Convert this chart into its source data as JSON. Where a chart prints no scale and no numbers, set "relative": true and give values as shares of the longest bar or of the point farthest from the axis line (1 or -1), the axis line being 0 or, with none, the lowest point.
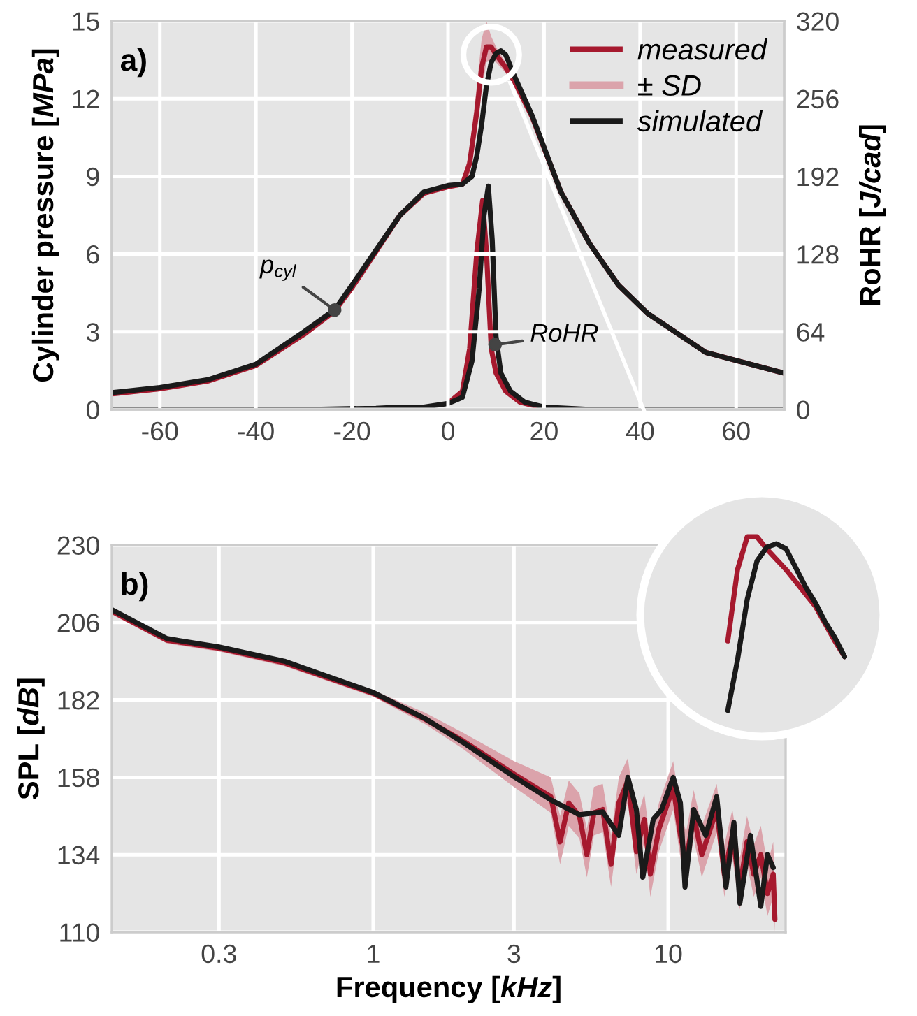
{
  "chart_data": [
    {
      "type": "line",
      "ylabel": "Cylinder pressure [MPa]",
      "y2label": "RoHR [J/cad]",
      "xlim": [
        -70,
        70
      ],
      "xticks": [
        -60,
        -40,
        -20,
        0,
        20,
        40,
        60
      ],
      "ylim": [
        0,
        15
      ],
      "yticks": [
        0,
        3,
        6,
        9,
        12,
        15
      ],
      "y2lim": [
        0,
        320
      ],
      "y2ticks": [
        0,
        64,
        128,
        192,
        256,
        320
      ],
      "grid": true,
      "legend": "top right",
      "annotations": [
        "a)",
        "± SD",
        {
          "text": "p$_{cyl}$",
          "x": -23.6,
          "y": 3.84
        },
        {
          "text": "RoHR",
          "x": 9.8,
          "y": 2.5
        }
      ],
      "series": [
        {
          "name": "measured",
          "color": "#a6192e",
          "x": [
            -70,
            -60,
            -50,
            -40,
            -30,
            -23.6,
            -20,
            -15,
            -10,
            -5,
            0,
            3,
            4.5,
            6,
            7,
            8,
            9,
            10,
            12,
            14,
            17.5,
            23.5,
            29.5,
            35.5,
            41.6,
            53.7,
            70
          ],
          "values": [
            0.6,
            0.8,
            1.1,
            1.7,
            2.9,
            3.8,
            4.7,
            6.1,
            7.5,
            8.35,
            8.6,
            8.7,
            9.5,
            11.5,
            13.2,
            14.0,
            14.0,
            13.7,
            13.2,
            12.6,
            11.3,
            8.4,
            6.4,
            4.8,
            3.7,
            2.2,
            1.4
          ],
          "lower": [
            0.5,
            0.7,
            1.0,
            1.6,
            2.8,
            3.7,
            4.6,
            6.0,
            7.4,
            8.25,
            8.5,
            8.6,
            9.1,
            10.8,
            12.3,
            13.4,
            13.5,
            13.4,
            13.0,
            12.4,
            11.2,
            8.3,
            6.3,
            4.7,
            3.6,
            2.1,
            1.3
          ],
          "upper": [
            0.7,
            0.9,
            1.2,
            1.8,
            3.0,
            3.9,
            4.8,
            6.2,
            7.6,
            8.45,
            8.7,
            8.8,
            10.0,
            12.5,
            14.3,
            15.0,
            14.4,
            14.0,
            13.4,
            12.8,
            11.4,
            8.5,
            6.5,
            4.9,
            3.8,
            2.3,
            1.5
          ]
        },
        {
          "name": "simulated",
          "color": "#1a1a1a",
          "x": [
            -70,
            -60,
            -50,
            -40,
            -30,
            -23.6,
            -20,
            -15,
            -10,
            -5,
            0,
            3,
            5,
            6,
            7,
            8,
            9,
            10,
            11,
            12,
            14,
            17.5,
            23.5,
            29.5,
            35.5,
            41.6,
            53.7,
            70
          ],
          "values": [
            0.65,
            0.85,
            1.15,
            1.75,
            3.0,
            3.85,
            4.8,
            6.15,
            7.5,
            8.4,
            8.65,
            8.7,
            9.0,
            9.8,
            11.0,
            12.5,
            13.4,
            13.75,
            13.85,
            13.7,
            12.8,
            11.35,
            8.4,
            6.4,
            4.8,
            3.7,
            2.2,
            1.4
          ]
        },
        {
          "axis": "y2",
          "color": "#a6192e",
          "x": [
            0,
            3,
            4.5,
            6,
            7.2,
            8,
            9,
            10,
            12,
            15,
            20,
            30
          ],
          "values": [
            5,
            15,
            50,
            130,
            172,
            130,
            50,
            30,
            15,
            6,
            1,
            0
          ]
        },
        {
          "axis": "y2",
          "color": "#1a1a1a",
          "x": [
            -70,
            -30,
            -15,
            -10,
            -5,
            0,
            3,
            5,
            6.5,
            7.5,
            8.4,
            9.2,
            10,
            11,
            13,
            16,
            20,
            30,
            70
          ],
          "values": [
            0,
            0,
            1,
            2,
            2,
            5,
            10,
            40,
            100,
            160,
            184,
            140,
            60,
            30,
            15,
            6,
            2,
            0,
            0
          ]
        }
      ]
    },
    {
      "type": "line",
      "xlabel": "Frequency [kHz]",
      "ylabel": "SPL [dB]",
      "log": "x",
      "xlim": [
        0.13,
        25
      ],
      "xticks": [
        0.3,
        1,
        3,
        10
      ],
      "ylim": [
        110,
        230
      ],
      "yticks": [
        110,
        134,
        158,
        182,
        206,
        230
      ],
      "grid": true,
      "annotations": [
        "b)"
      ],
      "series": [
        {
          "color": "#a6192e",
          "x": [
            0.13,
            0.2,
            0.3,
            0.5,
            1,
            1.5,
            2,
            3,
            4,
            4.3,
            4.6,
            5,
            5.3,
            5.6,
            6,
            6.4,
            6.8,
            7.3,
            7.8,
            8.3,
            8.7,
            9.3,
            10.4,
            11,
            11.5,
            12.2,
            13,
            14.6,
            15.5,
            16.5,
            17.5,
            18.5,
            19.5,
            20.6,
            21.7,
            22.7,
            23
          ],
          "values": [
            209.5,
            200.5,
            198,
            193.5,
            184,
            176,
            169.5,
            159,
            152,
            138,
            150,
            146,
            134,
            147,
            148,
            131,
            150,
            157,
            135,
            145,
            128,
            142,
            155,
            140,
            132,
            146,
            134,
            148,
            128,
            140,
            124,
            138,
            128,
            134,
            122,
            128,
            114
          ],
          "lower": [
            208.5,
            199.5,
            197,
            192.5,
            183,
            174.5,
            167,
            155,
            147,
            131,
            143,
            139,
            127,
            140,
            141,
            124,
            143,
            150,
            128,
            138,
            121,
            135,
            148,
            133,
            125,
            139,
            127,
            141,
            121,
            133,
            117,
            131,
            121,
            127,
            115,
            121,
            110
          ],
          "upper": [
            210.5,
            201.5,
            199,
            194.5,
            185,
            178,
            172,
            163,
            158,
            146,
            157,
            153,
            142,
            155,
            156,
            140,
            158,
            164,
            144,
            153,
            137,
            150,
            163,
            148,
            141,
            154,
            143,
            156,
            137,
            148,
            133,
            146,
            137,
            143,
            131,
            138,
            125
          ]
        },
        {
          "color": "#1a1a1a",
          "x": [
            0.13,
            0.2,
            0.3,
            0.5,
            1,
            1.5,
            2,
            3,
            4,
            5,
            6,
            6.8,
            7.3,
            7.8,
            8.2,
            8.9,
            9.5,
            10.4,
            11,
            11.4,
            12.2,
            13.4,
            14.6,
            15.7,
            16.7,
            17.5,
            19,
            20.6,
            21.7,
            22.7
          ],
          "values": [
            210,
            201,
            198.4,
            194,
            184.3,
            176.2,
            169,
            158.2,
            151,
            146.4,
            147.3,
            140,
            158,
            148,
            127,
            145,
            148,
            158,
            150,
            124,
            148,
            140,
            152,
            124,
            144,
            119,
            140,
            118,
            134,
            130
          ]
        }
      ]
    },
    {
      "type": "line",
      "relative": true,
      "categories": [
        null,
        null,
        null,
        null,
        null,
        null,
        null,
        null,
        null,
        null,
        null,
        null,
        null
      ],
      "series": [
        {
          "color": "#a6192e",
          "values": [
            0.4,
            0.81,
            1.0,
            1.0,
            0.93,
            0.87,
            0.81,
            0.74,
            0.67,
            0.6,
            0.5,
            0.4,
            0.31
          ]
        },
        {
          "color": "#1a1a1a",
          "values": [
            0,
            0.29,
            0.64,
            0.86,
            0.94,
            0.96,
            0.93,
            0.82,
            0.71,
            0.62,
            0.51,
            0.42,
            0.31
          ]
        }
      ]
    }
  ]
}
